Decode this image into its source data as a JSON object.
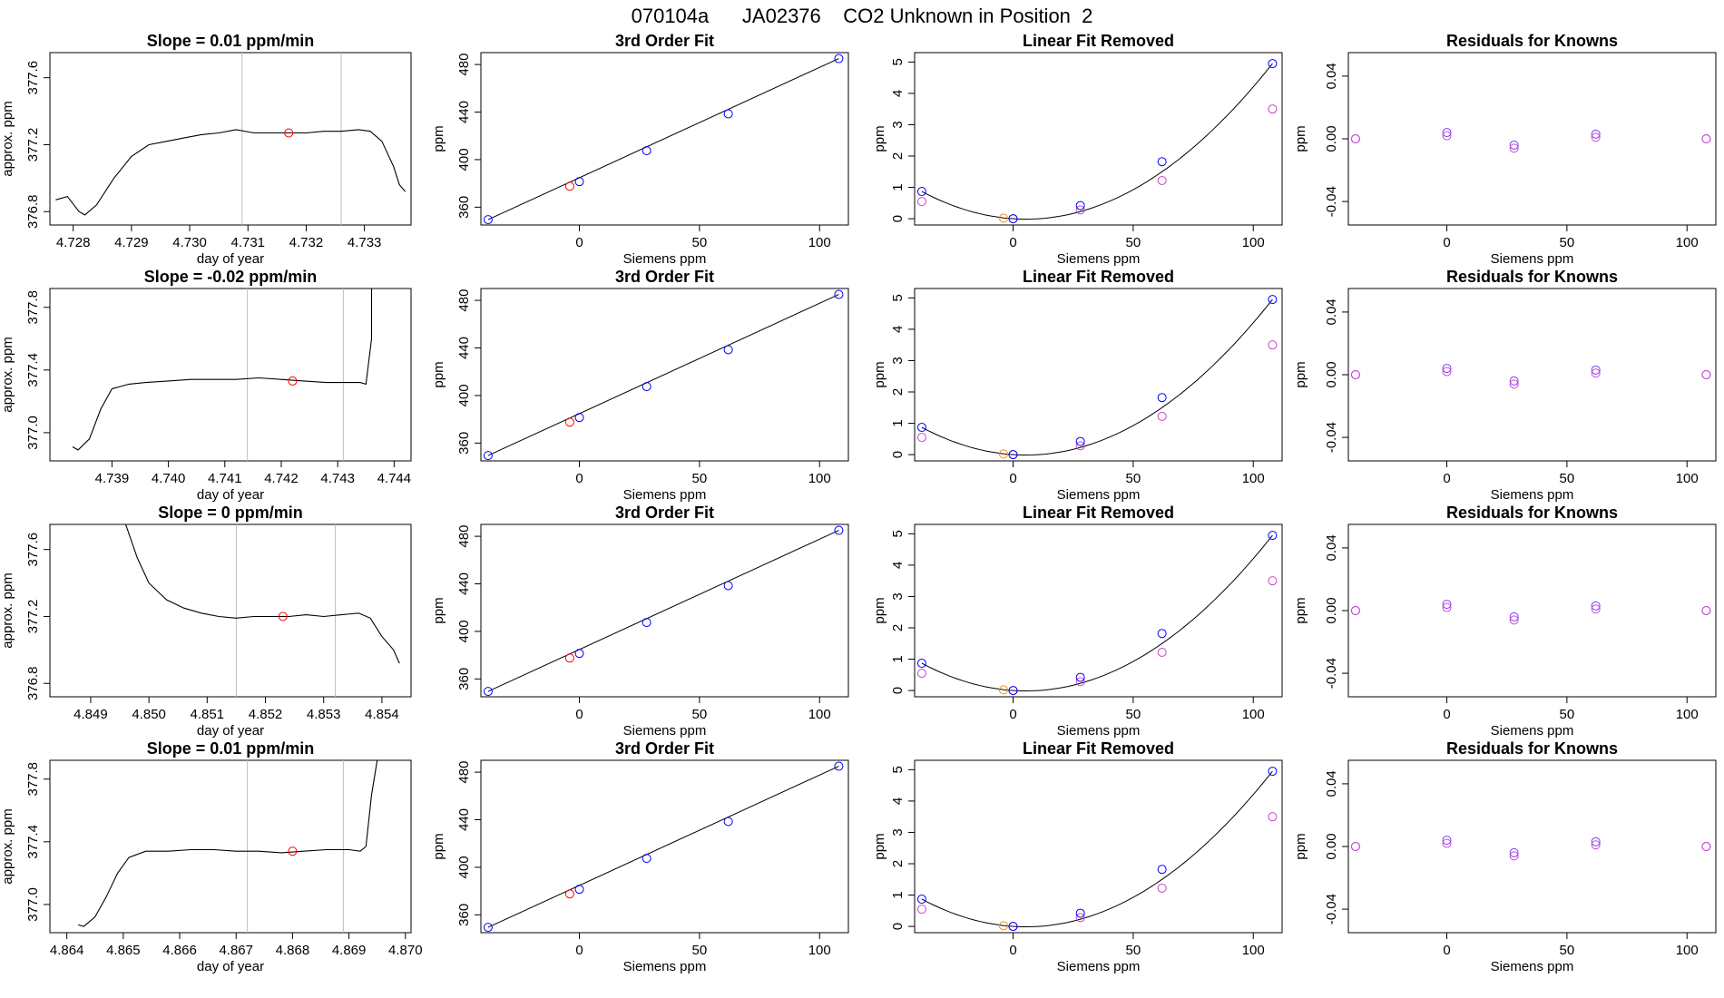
{
  "page_title": "070104a      JA02376    CO2 Unknown in Position  2",
  "colors": {
    "trace": "#000000",
    "marker_red": "#ff0000",
    "marker_blue": "#0000ff",
    "marker_orange": "#ff8c00",
    "marker_magenta": "#cc44cc",
    "marker_purple": "#7a3cff",
    "gridline": "#bebebe"
  },
  "chart_data": [
    {
      "row": 1,
      "type": "line",
      "title": "Slope =  0.01  ppm/min",
      "xlabel": "day of year",
      "ylabel": "approx. ppm",
      "xlim": [
        4.7276,
        4.7338
      ],
      "ylim": [
        376.72,
        377.75
      ],
      "xticks": [
        4.728,
        4.729,
        4.73,
        4.731,
        4.732,
        4.733
      ],
      "xtick_labels": [
        "4.728",
        "4.729",
        "4.730",
        "4.731",
        "4.732",
        "4.733"
      ],
      "yticks": [
        376.8,
        377.2,
        377.6
      ],
      "ytick_labels": [
        "376.8",
        "377.2",
        "377.6"
      ],
      "vlines": [
        4.7309,
        4.7326
      ],
      "marker": [
        4.7317,
        377.27
      ],
      "trace": [
        [
          4.7277,
          376.87
        ],
        [
          4.7279,
          376.89
        ],
        [
          4.7281,
          376.8
        ],
        [
          4.7282,
          376.78
        ],
        [
          4.7284,
          376.84
        ],
        [
          4.7287,
          377.0
        ],
        [
          4.729,
          377.13
        ],
        [
          4.7293,
          377.2
        ],
        [
          4.7296,
          377.22
        ],
        [
          4.7299,
          377.24
        ],
        [
          4.7302,
          377.26
        ],
        [
          4.7305,
          377.27
        ],
        [
          4.7308,
          377.29
        ],
        [
          4.7311,
          377.27
        ],
        [
          4.7314,
          377.27
        ],
        [
          4.7317,
          377.27
        ],
        [
          4.732,
          377.27
        ],
        [
          4.7323,
          377.28
        ],
        [
          4.7326,
          377.28
        ],
        [
          4.7329,
          377.29
        ],
        [
          4.7331,
          377.28
        ],
        [
          4.7333,
          377.22
        ],
        [
          4.7335,
          377.07
        ],
        [
          4.7336,
          376.96
        ],
        [
          4.7337,
          376.92
        ]
      ]
    },
    {
      "row": 2,
      "type": "line",
      "title": "Slope =  -0.02  ppm/min",
      "xlabel": "day of year",
      "ylabel": "approx. ppm",
      "xlim": [
        4.7379,
        4.7443
      ],
      "ylim": [
        376.82,
        377.92
      ],
      "xticks": [
        4.739,
        4.74,
        4.741,
        4.742,
        4.743,
        4.744
      ],
      "xtick_labels": [
        "4.739",
        "4.740",
        "4.741",
        "4.742",
        "4.743",
        "4.744"
      ],
      "yticks": [
        377.0,
        377.4,
        377.8
      ],
      "ytick_labels": [
        "377.0",
        "377.4",
        "377.8"
      ],
      "vlines": [
        4.7414,
        4.7431
      ],
      "marker": [
        4.7422,
        377.33
      ],
      "trace": [
        [
          4.7383,
          376.91
        ],
        [
          4.7384,
          376.89
        ],
        [
          4.7386,
          376.96
        ],
        [
          4.7388,
          377.15
        ],
        [
          4.739,
          377.28
        ],
        [
          4.7393,
          377.31
        ],
        [
          4.7396,
          377.32
        ],
        [
          4.74,
          377.33
        ],
        [
          4.7404,
          377.34
        ],
        [
          4.7408,
          377.34
        ],
        [
          4.7412,
          377.34
        ],
        [
          4.7416,
          377.35
        ],
        [
          4.742,
          377.34
        ],
        [
          4.7424,
          377.33
        ],
        [
          4.7428,
          377.32
        ],
        [
          4.7431,
          377.32
        ],
        [
          4.7434,
          377.32
        ],
        [
          4.7435,
          377.31
        ],
        [
          4.7436,
          377.6
        ],
        [
          4.7436,
          377.92
        ]
      ]
    },
    {
      "row": 3,
      "type": "line",
      "title": "Slope =  0  ppm/min",
      "xlabel": "day of year",
      "ylabel": "approx. ppm",
      "xlim": [
        4.8483,
        4.8545
      ],
      "ylim": [
        376.72,
        377.75
      ],
      "xticks": [
        4.849,
        4.85,
        4.851,
        4.852,
        4.853,
        4.854
      ],
      "xtick_labels": [
        "4.849",
        "4.850",
        "4.851",
        "4.852",
        "4.853",
        "4.854"
      ],
      "yticks": [
        376.8,
        377.2,
        377.6
      ],
      "ytick_labels": [
        "376.8",
        "377.2",
        "377.6"
      ],
      "vlines": [
        4.8515,
        4.8532
      ],
      "marker": [
        4.8523,
        377.2
      ],
      "trace": [
        [
          4.8496,
          377.75
        ],
        [
          4.8498,
          377.55
        ],
        [
          4.85,
          377.4
        ],
        [
          4.8503,
          377.3
        ],
        [
          4.8506,
          377.25
        ],
        [
          4.8509,
          377.22
        ],
        [
          4.8512,
          377.2
        ],
        [
          4.8515,
          377.19
        ],
        [
          4.8518,
          377.2
        ],
        [
          4.8521,
          377.2
        ],
        [
          4.8524,
          377.2
        ],
        [
          4.8527,
          377.21
        ],
        [
          4.853,
          377.2
        ],
        [
          4.8533,
          377.21
        ],
        [
          4.8536,
          377.22
        ],
        [
          4.8538,
          377.19
        ],
        [
          4.854,
          377.08
        ],
        [
          4.8542,
          377.0
        ],
        [
          4.8543,
          376.92
        ]
      ]
    },
    {
      "row": 4,
      "type": "line",
      "title": "Slope =  0.01  ppm/min",
      "xlabel": "day of year",
      "ylabel": "approx. ppm",
      "xlim": [
        4.8637,
        4.8701
      ],
      "ylim": [
        376.82,
        377.92
      ],
      "xticks": [
        4.864,
        4.865,
        4.866,
        4.867,
        4.868,
        4.869,
        4.87
      ],
      "xtick_labels": [
        "4.864",
        "4.865",
        "4.866",
        "4.867",
        "4.868",
        "4.869",
        "4.870"
      ],
      "yticks": [
        377.0,
        377.4,
        377.8
      ],
      "ytick_labels": [
        "377.0",
        "377.4",
        "377.8"
      ],
      "vlines": [
        4.8672,
        4.8689
      ],
      "marker": [
        4.868,
        377.34
      ],
      "trace": [
        [
          4.8642,
          376.87
        ],
        [
          4.8643,
          376.86
        ],
        [
          4.8645,
          376.92
        ],
        [
          4.8647,
          377.05
        ],
        [
          4.8649,
          377.2
        ],
        [
          4.8651,
          377.3
        ],
        [
          4.8654,
          377.34
        ],
        [
          4.8658,
          377.34
        ],
        [
          4.8662,
          377.35
        ],
        [
          4.8666,
          377.35
        ],
        [
          4.867,
          377.34
        ],
        [
          4.8674,
          377.34
        ],
        [
          4.8678,
          377.33
        ],
        [
          4.8682,
          377.34
        ],
        [
          4.8686,
          377.35
        ],
        [
          4.869,
          377.35
        ],
        [
          4.8692,
          377.34
        ],
        [
          4.8693,
          377.37
        ],
        [
          4.8694,
          377.7
        ],
        [
          4.8695,
          377.92
        ]
      ]
    }
  ],
  "fit_template": {
    "title3": "3rd Order Fit",
    "title_lin": "Linear Fit Removed",
    "title_res": "Residuals for Knowns",
    "xlabel": "Siemens ppm",
    "ylabel": "ppm",
    "fit_xlim": [
      -41,
      112
    ],
    "fit_ylim": [
      345,
      490
    ],
    "fit_xticks": [
      0,
      50,
      100
    ],
    "fit_xtick_labels": [
      "0",
      "50",
      "100"
    ],
    "fit_yticks": [
      360,
      400,
      440,
      480
    ],
    "fit_ytick_labels": [
      "360",
      "400",
      "440",
      "480"
    ],
    "fit_known_x": [
      -38,
      0,
      28,
      62,
      108
    ],
    "fit_known_y": [
      349.5,
      381.5,
      407.5,
      438.5,
      485.0
    ],
    "fit_unknown": [
      -4,
      377.6
    ],
    "lin_xlim": [
      -41,
      112
    ],
    "lin_ylim": [
      -0.2,
      5.3
    ],
    "lin_xticks": [
      0,
      50,
      100
    ],
    "lin_xtick_labels": [
      "0",
      "50",
      "100"
    ],
    "lin_yticks": [
      0,
      1,
      2,
      3,
      4,
      5
    ],
    "lin_ytick_labels": [
      "0",
      "1",
      "2",
      "3",
      "4",
      "5"
    ],
    "lin_known_x": [
      -38,
      0,
      28,
      62,
      108
    ],
    "lin_known_blue": [
      0.87,
      0.0,
      0.42,
      1.82,
      4.95
    ],
    "lin_known_magenta": [
      0.55,
      0.0,
      0.28,
      1.22,
      3.5
    ],
    "lin_unknown": [
      -4,
      0.02
    ],
    "res_xlim": [
      -41,
      112
    ],
    "res_ylim": [
      -0.055,
      0.055
    ],
    "res_xticks": [
      0,
      50,
      100
    ],
    "res_xtick_labels": [
      "0",
      "50",
      "100"
    ],
    "res_yticks": [
      -0.04,
      0.0,
      0.04
    ],
    "res_ytick_labels": [
      "-0.04",
      "0.00",
      "0.04"
    ],
    "res_x": [
      -38,
      0,
      28,
      62,
      108
    ],
    "res_a": [
      0.0,
      0.004,
      -0.004,
      0.003,
      0.0
    ],
    "res_b": [
      0.0,
      0.002,
      -0.006,
      0.001,
      0.0
    ]
  }
}
